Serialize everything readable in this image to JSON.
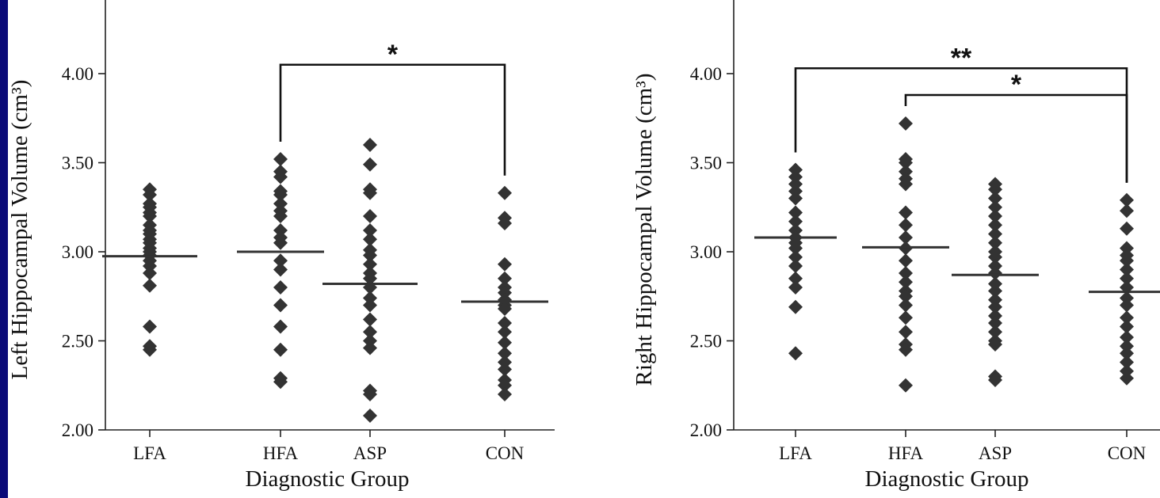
{
  "colors": {
    "frame": "#0a0a78",
    "panel": "#ffffff",
    "marker": "#333333",
    "text": "#111111"
  },
  "chart_data": [
    {
      "type": "scatter",
      "title": "",
      "xlabel": "Diagnostic Group",
      "ylabel": "Left Hippocampal Volume (cm³)",
      "categories": [
        "LFA",
        "HFA",
        "ASP",
        "CON"
      ],
      "ylim": [
        2.0,
        4.3
      ],
      "yticks": [
        2.0,
        2.5,
        3.0,
        3.5,
        4.0
      ],
      "ytick_labels": [
        "2.00",
        "2.50",
        "3.00",
        "3.50",
        "4.00"
      ],
      "marker": "diamond",
      "grid": false,
      "groups": [
        {
          "category": "LFA",
          "mean": 2.975,
          "points": [
            3.35,
            3.32,
            3.27,
            3.25,
            3.22,
            3.2,
            3.15,
            3.12,
            3.1,
            3.07,
            3.05,
            3.02,
            3.0,
            2.98,
            2.95,
            2.92,
            2.88,
            2.81,
            2.58,
            2.47,
            2.45
          ]
        },
        {
          "category": "HFA",
          "mean": 3.0,
          "points": [
            3.52,
            3.45,
            3.42,
            3.34,
            3.32,
            3.27,
            3.23,
            3.2,
            3.12,
            3.08,
            3.05,
            2.95,
            2.9,
            2.8,
            2.7,
            2.58,
            2.45,
            2.29,
            2.27
          ]
        },
        {
          "category": "ASP",
          "mean": 2.82,
          "points": [
            3.6,
            3.49,
            3.35,
            3.33,
            3.2,
            3.12,
            3.07,
            3.01,
            2.98,
            2.93,
            2.88,
            2.85,
            2.8,
            2.74,
            2.7,
            2.62,
            2.55,
            2.5,
            2.46,
            2.22,
            2.2,
            2.08
          ]
        },
        {
          "category": "CON",
          "mean": 2.72,
          "points": [
            3.33,
            3.19,
            3.16,
            2.93,
            2.85,
            2.8,
            2.77,
            2.73,
            2.7,
            2.68,
            2.6,
            2.55,
            2.49,
            2.43,
            2.38,
            2.34,
            2.28,
            2.25,
            2.2
          ]
        }
      ],
      "annotations": [
        {
          "from": "HFA",
          "to": "CON",
          "level": 4.05,
          "label": "*"
        }
      ]
    },
    {
      "type": "scatter",
      "title": "",
      "xlabel": "Diagnostic Group",
      "ylabel": "Right Hippocampal Volume (cm³)",
      "categories": [
        "LFA",
        "HFA",
        "ASP",
        "CON"
      ],
      "ylim": [
        2.0,
        4.3
      ],
      "yticks": [
        2.0,
        2.5,
        3.0,
        3.5,
        4.0
      ],
      "ytick_labels": [
        "2.00",
        "2.50",
        "3.00",
        "3.50",
        "4.00"
      ],
      "marker": "diamond",
      "grid": false,
      "groups": [
        {
          "category": "LFA",
          "mean": 3.08,
          "points": [
            3.46,
            3.42,
            3.38,
            3.34,
            3.3,
            3.22,
            3.17,
            3.12,
            3.08,
            3.05,
            3.02,
            2.97,
            2.92,
            2.85,
            2.8,
            2.69,
            2.43
          ]
        },
        {
          "category": "HFA",
          "mean": 3.025,
          "points": [
            3.72,
            3.52,
            3.5,
            3.45,
            3.41,
            3.38,
            3.22,
            3.15,
            3.08,
            3.02,
            2.95,
            2.88,
            2.83,
            2.78,
            2.75,
            2.7,
            2.63,
            2.55,
            2.48,
            2.45,
            2.25
          ]
        },
        {
          "category": "ASP",
          "mean": 2.87,
          "points": [
            3.38,
            3.35,
            3.3,
            3.25,
            3.2,
            3.15,
            3.1,
            3.05,
            3.0,
            2.97,
            2.92,
            2.88,
            2.82,
            2.78,
            2.73,
            2.69,
            2.64,
            2.6,
            2.55,
            2.5,
            2.48,
            2.3,
            2.28
          ]
        },
        {
          "category": "CON",
          "mean": 2.775,
          "points": [
            3.29,
            3.23,
            3.13,
            3.02,
            2.98,
            2.95,
            2.9,
            2.85,
            2.8,
            2.74,
            2.7,
            2.63,
            2.58,
            2.52,
            2.47,
            2.43,
            2.38,
            2.33,
            2.29
          ]
        }
      ],
      "annotations": [
        {
          "from": "LFA",
          "to": "CON",
          "level": 4.03,
          "label": "**"
        },
        {
          "from": "HFA",
          "to": "CON",
          "level": 3.88,
          "label": "*"
        }
      ]
    }
  ]
}
